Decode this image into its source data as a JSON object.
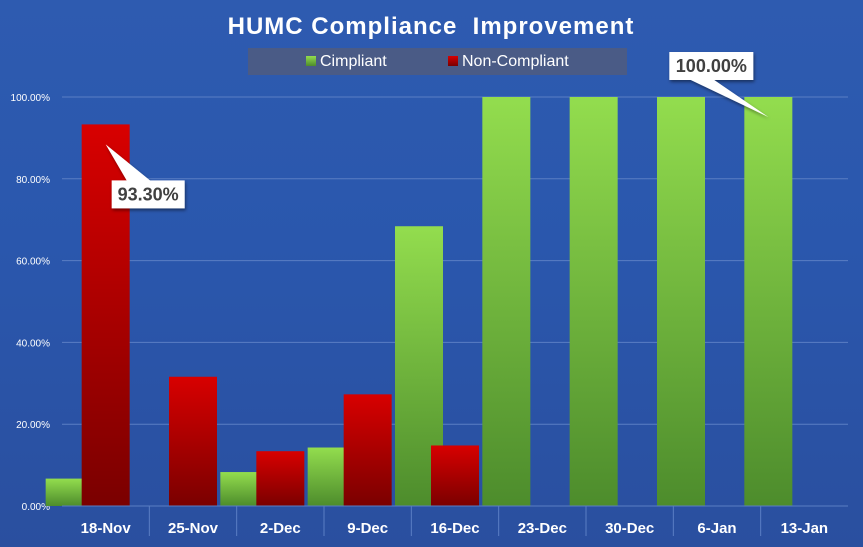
{
  "colors": {
    "background": "#2c58ad",
    "gridline": "#5a7ec4",
    "compliant_light": "#93dd4e",
    "compliant_dark": "#4d8c2c",
    "noncompliant_light": "#d80000",
    "noncompliant_dark": "#7a0000",
    "legend_bg": "#4a5b86",
    "text_white": "#ffffff",
    "callout_bg": "#ffffff",
    "callout_text": "#404040"
  },
  "chart_data": {
    "type": "bar",
    "title": "HUMC Compliance  Improvement",
    "xlabel": "",
    "ylabel": "",
    "categories": [
      "18-Nov",
      "25-Nov",
      "2-Dec",
      "9-Dec",
      "16-Dec",
      "23-Dec",
      "30-Dec",
      "6-Jan",
      "13-Jan"
    ],
    "series": [
      {
        "name": "Cimpliant",
        "values": [
          6.7,
          0,
          8.3,
          14.3,
          68.4,
          100,
          100,
          100,
          100
        ]
      },
      {
        "name": "Non-Compliant",
        "values": [
          93.3,
          31.6,
          13.4,
          27.3,
          14.8,
          0,
          0,
          0,
          0
        ]
      }
    ],
    "ylim": [
      0,
      100
    ],
    "yticks": [
      {
        "value": 0,
        "label": "0.00%"
      },
      {
        "value": 20,
        "label": "20.00%"
      },
      {
        "value": 40,
        "label": "40.00%"
      },
      {
        "value": 60,
        "label": "60.00%"
      },
      {
        "value": 80,
        "label": "80.00%"
      },
      {
        "value": 100,
        "label": "100.00%"
      }
    ],
    "grid": true,
    "legend_position": "top-center",
    "annotations": [
      {
        "text": "93.30%",
        "series_index": 1,
        "category_index": 0
      },
      {
        "text": "100.00%",
        "series_index": 0,
        "category_index": 8
      }
    ]
  }
}
